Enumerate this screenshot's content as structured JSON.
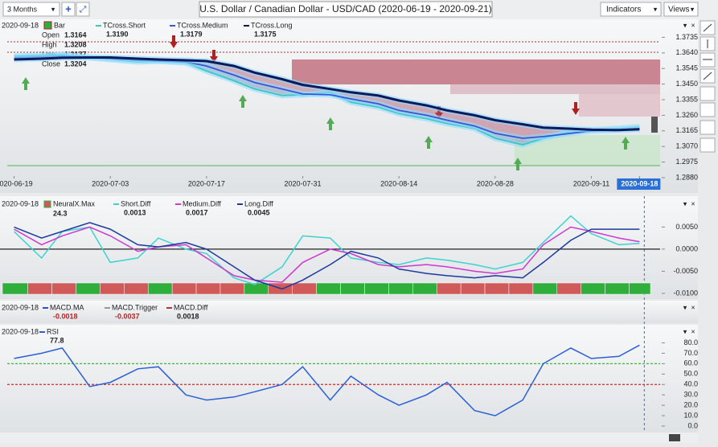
{
  "toolbar": {
    "range": "3 Months",
    "title": "U.S. Dollar / Canadian Dollar - USD/CAD (2020-06-19 - 2020-09-21)",
    "indicators": "Indicators",
    "views": "Views"
  },
  "chart_data": [
    {
      "type": "line",
      "date": "2020-09-18",
      "bar_label": "Bar",
      "data_window": [
        {
          "label": "Open",
          "value": "1.3164"
        },
        {
          "label": "High",
          "value": "1.3208"
        },
        {
          "label": "Low",
          "value": "1.3137"
        },
        {
          "label": "Close",
          "value": "1.3204"
        }
      ],
      "x": [
        "2020-06-19",
        "2020-06-23",
        "2020-06-26",
        "2020-06-30",
        "2020-07-03",
        "2020-07-07",
        "2020-07-10",
        "2020-07-14",
        "2020-07-17",
        "2020-07-21",
        "2020-07-24",
        "2020-07-28",
        "2020-07-31",
        "2020-08-04",
        "2020-08-07",
        "2020-08-11",
        "2020-08-14",
        "2020-08-18",
        "2020-08-21",
        "2020-08-25",
        "2020-08-28",
        "2020-09-01",
        "2020-09-04",
        "2020-09-08",
        "2020-09-11",
        "2020-09-15",
        "2020-09-18"
      ],
      "xlim": [
        "2020-06-18",
        "2020-09-21"
      ],
      "xticks": [
        "2020-06-19",
        "2020-07-03",
        "2020-07-17",
        "2020-07-31",
        "2020-08-14",
        "2020-08-28",
        "2020-09-11",
        "2020-09-18"
      ],
      "ylim": [
        1.2875,
        1.3835
      ],
      "yticks": [
        {
          "value": 1.3735,
          "label": "1.3735"
        },
        {
          "value": 1.364,
          "label": "1.3640"
        },
        {
          "value": 1.3545,
          "label": "1.3545"
        },
        {
          "value": 1.345,
          "label": "1.3450"
        },
        {
          "value": 1.3355,
          "label": "1.3355"
        },
        {
          "value": 1.326,
          "label": "1.3260"
        },
        {
          "value": 1.3165,
          "label": "1.3165"
        },
        {
          "value": 1.307,
          "label": "1.3070"
        },
        {
          "value": 1.2975,
          "label": "1.2975"
        },
        {
          "value": 1.288,
          "label": "1.2880"
        }
      ],
      "series": [
        {
          "name": "TCross.Short",
          "color": "#35c9c1",
          "last_label": "1.3190",
          "values": [
            1.362,
            1.3625,
            1.363,
            1.361,
            1.36,
            1.3585,
            1.359,
            1.358,
            1.353,
            1.347,
            1.342,
            1.338,
            1.3385,
            1.34,
            1.334,
            1.331,
            1.327,
            1.324,
            1.321,
            1.318,
            1.312,
            1.308,
            1.312,
            1.316,
            1.317,
            1.318,
            1.319
          ]
        },
        {
          "name": "TCross.Medium",
          "color": "#3a55d6",
          "last_label": "1.3179",
          "values": [
            1.361,
            1.3615,
            1.362,
            1.3615,
            1.3605,
            1.3595,
            1.359,
            1.3585,
            1.356,
            1.3505,
            1.346,
            1.342,
            1.339,
            1.3385,
            1.336,
            1.333,
            1.329,
            1.326,
            1.323,
            1.3195,
            1.315,
            1.312,
            1.313,
            1.315,
            1.3165,
            1.3172,
            1.3179
          ]
        },
        {
          "name": "TCross.Long",
          "color": "#0b1a5c",
          "last_label": "1.3175",
          "values": [
            1.36,
            1.3605,
            1.361,
            1.3612,
            1.3612,
            1.3605,
            1.36,
            1.3595,
            1.359,
            1.356,
            1.352,
            1.348,
            1.3445,
            1.342,
            1.34,
            1.338,
            1.335,
            1.332,
            1.329,
            1.326,
            1.323,
            1.3205,
            1.3185,
            1.3178,
            1.3172,
            1.317,
            1.3175
          ]
        }
      ]
    },
    {
      "type": "line",
      "date": "2020-09-18",
      "signal_name": "NeuralX.Max",
      "signal_label": "24.3",
      "signal_colors": [
        "#2fae3c",
        "#d05a5a",
        "#d05a5a",
        "#2fae3c",
        "#d05a5a",
        "#d05a5a",
        "#2fae3c",
        "#d05a5a",
        "#d05a5a",
        "#d05a5a",
        "#2fae3c",
        "#d05a5a",
        "#d05a5a",
        "#2fae3c",
        "#2fae3c",
        "#2fae3c",
        "#2fae3c",
        "#2fae3c",
        "#d05a5a",
        "#d05a5a",
        "#d05a5a",
        "#d05a5a",
        "#2fae3c",
        "#d05a5a",
        "#2fae3c",
        "#2fae3c",
        "#2fae3c"
      ],
      "ylim": [
        -0.0102,
        0.0098
      ],
      "yticks": [
        {
          "value": 0.005,
          "label": "0.0050"
        },
        {
          "value": 0,
          "label": "0.0000"
        },
        {
          "value": -0.005,
          "label": "-0.0050"
        },
        {
          "value": -0.01,
          "label": "-0.0100"
        }
      ],
      "series": [
        {
          "name": "Short.Diff",
          "color": "#3fd2cf",
          "last_label": "0.0013",
          "values": [
            0.004,
            -0.002,
            0.004,
            0.005,
            -0.003,
            -0.002,
            0.0025,
            0.0,
            -0.001,
            -0.0065,
            -0.008,
            -0.004,
            0.003,
            0.0025,
            -0.002,
            -0.003,
            -0.0035,
            -0.002,
            -0.0025,
            -0.0035,
            -0.0045,
            -0.003,
            0.0015,
            0.0075,
            0.0035,
            0.001,
            0.0013
          ]
        },
        {
          "name": "Medium.Diff",
          "color": "#cc38d0",
          "last_label": "0.0017",
          "values": [
            0.0045,
            0.001,
            0.003,
            0.005,
            0.003,
            -0.0005,
            0.0005,
            0.001,
            -0.002,
            -0.006,
            -0.007,
            -0.0075,
            -0.003,
            0.0,
            -0.001,
            -0.0035,
            -0.004,
            -0.0035,
            -0.004,
            -0.005,
            -0.0055,
            -0.0045,
            0.001,
            0.005,
            0.004,
            0.0025,
            0.0017
          ]
        },
        {
          "name": "Long.Diff",
          "color": "#1d3a9c",
          "last_label": "0.0045",
          "values": [
            0.005,
            0.0025,
            0.004,
            0.006,
            0.0045,
            0.001,
            0.0005,
            0.0015,
            0.0,
            -0.004,
            -0.007,
            -0.009,
            -0.007,
            -0.0035,
            -0.0005,
            -0.002,
            -0.0045,
            -0.0055,
            -0.006,
            -0.0065,
            -0.006,
            -0.0065,
            -0.003,
            0.002,
            0.0045,
            0.0045,
            0.0045
          ]
        }
      ]
    },
    {
      "type": "legend",
      "date": "2020-09-18",
      "series": [
        {
          "name": "MACD.MA",
          "color": "#2a4fd0",
          "last_label": "-0.0018"
        },
        {
          "name": "MACD.Trigger",
          "color": "#999999",
          "last_label": "-0.0037"
        },
        {
          "name": "MACD.Diff",
          "color": "#c03030",
          "last_label": "0.0018"
        }
      ]
    },
    {
      "type": "line",
      "date": "2020-09-18",
      "ylim": [
        0,
        85
      ],
      "yticks": [
        {
          "value": 80,
          "label": "80.0"
        },
        {
          "value": 70,
          "label": "70.0"
        },
        {
          "value": 60,
          "label": "60.0"
        },
        {
          "value": 50,
          "label": "50.0"
        },
        {
          "value": 40,
          "label": "40.0"
        },
        {
          "value": 30,
          "label": "30.0"
        },
        {
          "value": 20,
          "label": "20.0"
        },
        {
          "value": 10,
          "label": "10.0"
        },
        {
          "value": 0,
          "label": "0.0"
        }
      ],
      "reference_lines": [
        {
          "value": 60,
          "color": "#33bb33"
        },
        {
          "value": 40,
          "color": "#dd2222"
        }
      ],
      "series": [
        {
          "name": "RSI",
          "color": "#2a5fd8",
          "last_label": "77.8",
          "values": [
            65,
            70,
            75,
            38,
            42,
            55,
            57,
            30,
            25,
            28,
            33,
            40,
            57,
            25,
            48,
            30,
            20,
            30,
            42,
            15,
            10,
            25,
            60,
            75,
            65,
            67,
            77.8
          ]
        }
      ]
    }
  ]
}
